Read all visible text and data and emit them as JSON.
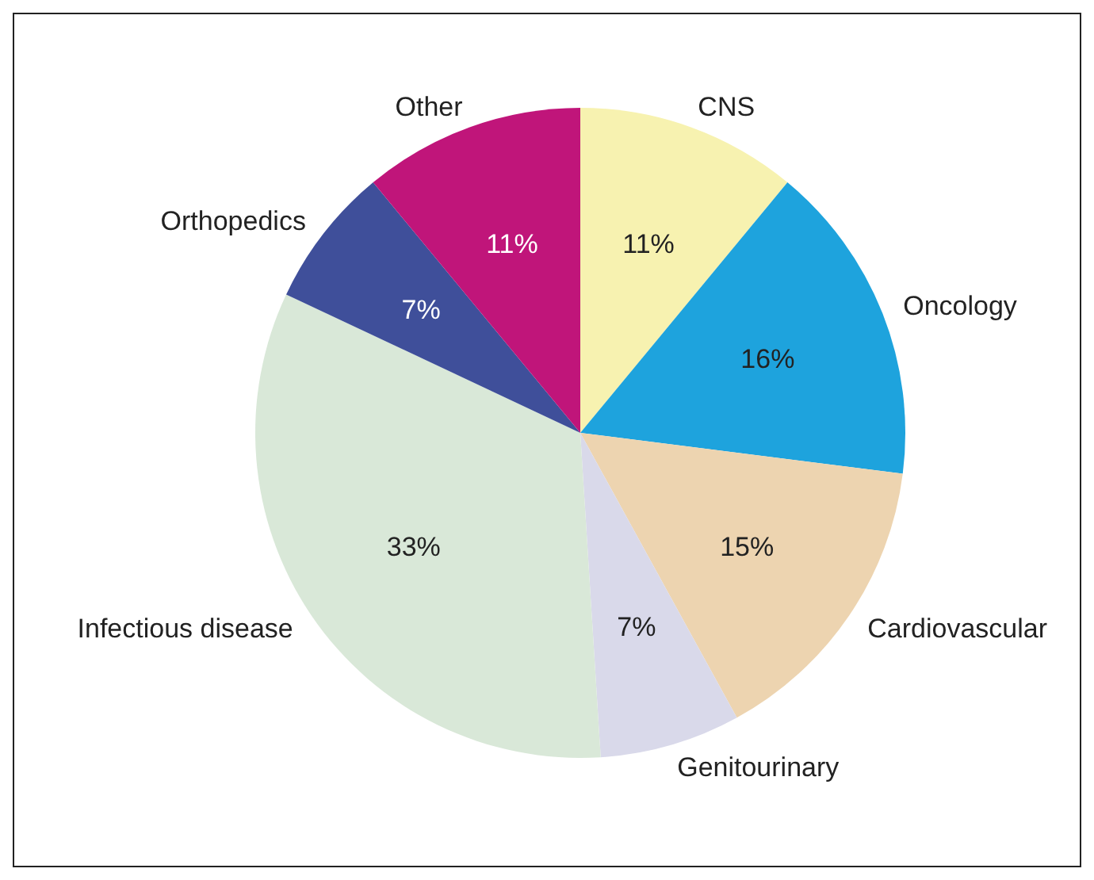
{
  "chart_data": {
    "type": "pie",
    "categories": [
      "CNS",
      "Oncology",
      "Cardiovascular",
      "Genitourinary",
      "Infectious disease",
      "Orthopedics",
      "Other"
    ],
    "values": [
      11,
      16,
      15,
      7,
      33,
      7,
      11
    ],
    "value_labels": [
      "11%",
      "16%",
      "15%",
      "7%",
      "33%",
      "7%",
      "11%"
    ],
    "colors": [
      "#f7f2b0",
      "#1ea3dd",
      "#edd4b0",
      "#d9d9ea",
      "#d9e8d8",
      "#3f4f9a",
      "#c0157a"
    ],
    "legend": false
  }
}
